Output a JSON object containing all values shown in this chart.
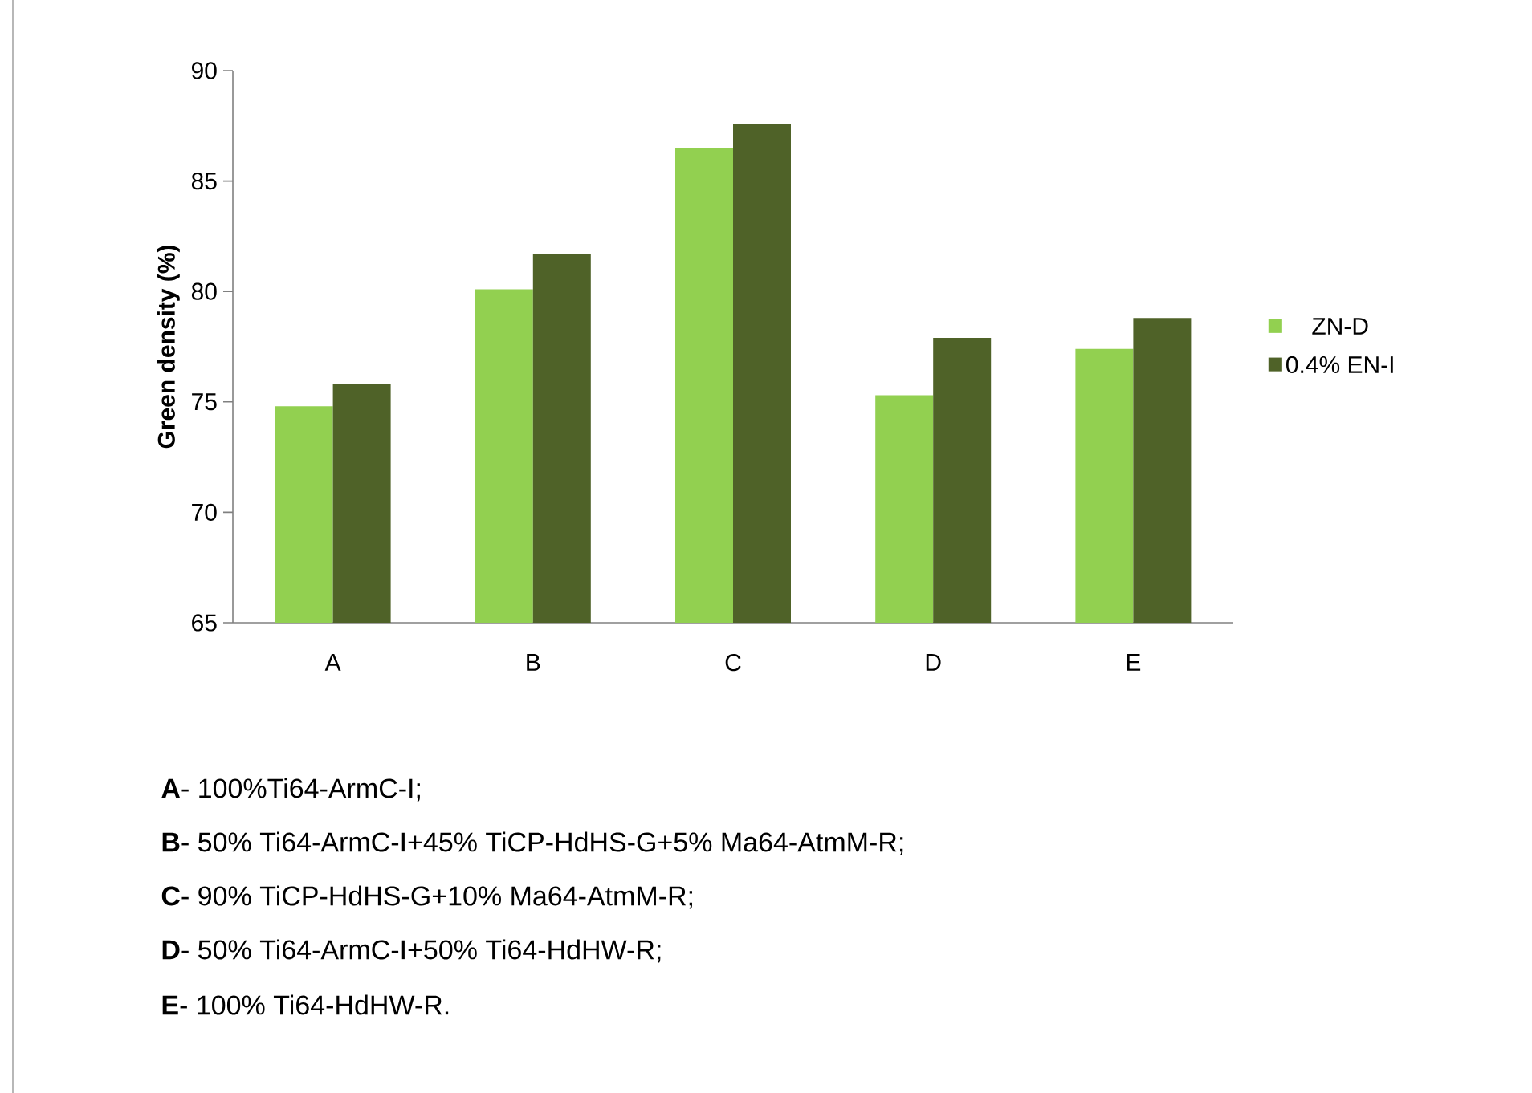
{
  "chart_data": {
    "type": "bar",
    "ylabel": "Green density (%)",
    "categories": [
      "A",
      "B",
      "C",
      "D",
      "E"
    ],
    "series": [
      {
        "name": "ZN-D",
        "color": "#92d050",
        "values": [
          74.8,
          80.1,
          86.5,
          75.3,
          77.4
        ]
      },
      {
        "name": "0.4% EN-I",
        "color": "#4f6228",
        "values": [
          75.8,
          81.7,
          87.6,
          77.9,
          78.8
        ]
      }
    ],
    "ylim": [
      65,
      90
    ],
    "yticks": [
      65,
      70,
      75,
      80,
      85,
      90
    ],
    "legend": "right",
    "grid": false,
    "annotations": [
      "**A**- 100%Ti64-ArmC-I;",
      "**B**- 50% Ti64-ArmC-I+45% TiCP-HdHS-G+5% Ma64-AtmM-R;",
      "**C**- 90% TiCP-HdHS-G+10% Ma64-AtmM-R;",
      "**D**- 50% Ti64-ArmC-I+50% Ti64-HdHW-R;",
      "**E**- 100% Ti64-HdHW-R."
    ]
  }
}
